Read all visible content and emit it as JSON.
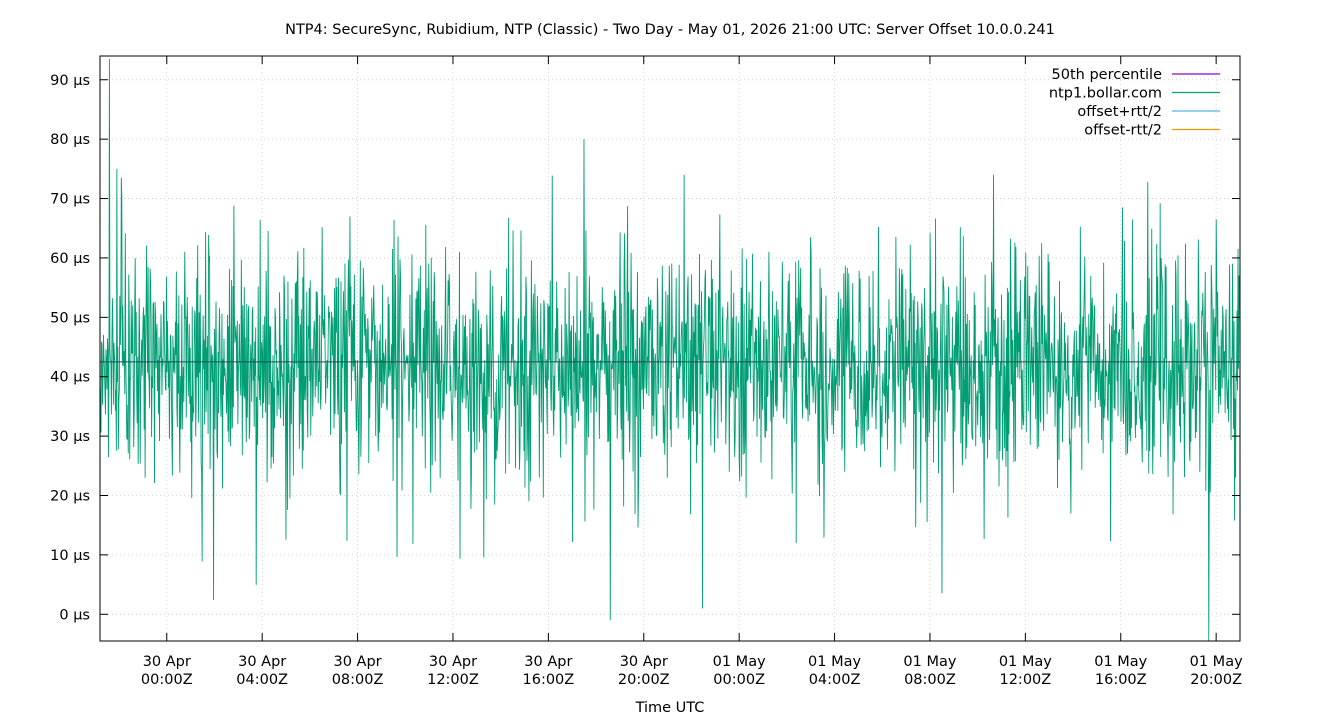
{
  "chart_data": {
    "type": "line",
    "title": "NTP4: SecureSync, Rubidium, NTP (Classic) - Two Day - May 01, 2026 21:00 UTC: Server Offset 10.0.0.241",
    "xlabel": "Time UTC",
    "ylabel": "",
    "x_unit": "hours relative to 30 Apr 00:00Z",
    "xlim": [
      -2.8,
      45.0
    ],
    "ylim": [
      -4.5,
      94.0
    ],
    "grid": true,
    "legend_position": "top-right",
    "x_ticks": [
      {
        "x": 0,
        "date": "30 Apr",
        "time": "00:00Z"
      },
      {
        "x": 4,
        "date": "30 Apr",
        "time": "04:00Z"
      },
      {
        "x": 8,
        "date": "30 Apr",
        "time": "08:00Z"
      },
      {
        "x": 12,
        "date": "30 Apr",
        "time": "12:00Z"
      },
      {
        "x": 16,
        "date": "30 Apr",
        "time": "16:00Z"
      },
      {
        "x": 20,
        "date": "30 Apr",
        "time": "20:00Z"
      },
      {
        "x": 24,
        "date": "01 May",
        "time": "00:00Z"
      },
      {
        "x": 28,
        "date": "01 May",
        "time": "04:00Z"
      },
      {
        "x": 32,
        "date": "01 May",
        "time": "08:00Z"
      },
      {
        "x": 36,
        "date": "01 May",
        "time": "12:00Z"
      },
      {
        "x": 40,
        "date": "01 May",
        "time": "16:00Z"
      },
      {
        "x": 44,
        "date": "01 May",
        "time": "20:00Z"
      }
    ],
    "y_ticks": [
      {
        "y": 0,
        "label": "0 µs"
      },
      {
        "y": 10,
        "label": "10 µs"
      },
      {
        "y": 20,
        "label": "20 µs"
      },
      {
        "y": 30,
        "label": "30 µs"
      },
      {
        "y": 40,
        "label": "40 µs"
      },
      {
        "y": 50,
        "label": "50 µs"
      },
      {
        "y": 60,
        "label": "60 µs"
      },
      {
        "y": 70,
        "label": "70 µs"
      },
      {
        "y": 80,
        "label": "80 µs"
      },
      {
        "y": 90,
        "label": "90 µs"
      }
    ],
    "series": [
      {
        "name": "50th percentile",
        "color": "#9400d3",
        "kind": "hline",
        "value": 42.5
      },
      {
        "name": "ntp1.bollar.com",
        "color": "#009e73",
        "kind": "line",
        "x_range": [
          -2.8,
          45.0
        ],
        "n_points": 2300,
        "approx_mean": 42,
        "approx_std": 9,
        "notable_points": [
          {
            "x": -2.4,
            "y": 93.5
          },
          {
            "x": -2.1,
            "y": 75
          },
          {
            "x": -1.9,
            "y": 73.5
          },
          {
            "x": 17.5,
            "y": 80
          },
          {
            "x": 18.6,
            "y": -1
          },
          {
            "x": 43.7,
            "y": -4.5
          }
        ]
      },
      {
        "name": "offset+rtt/2",
        "color": "#56b4e9",
        "kind": "line",
        "values": []
      },
      {
        "name": "offset-rtt/2",
        "color": "#e69f00",
        "kind": "line",
        "values": []
      }
    ]
  }
}
